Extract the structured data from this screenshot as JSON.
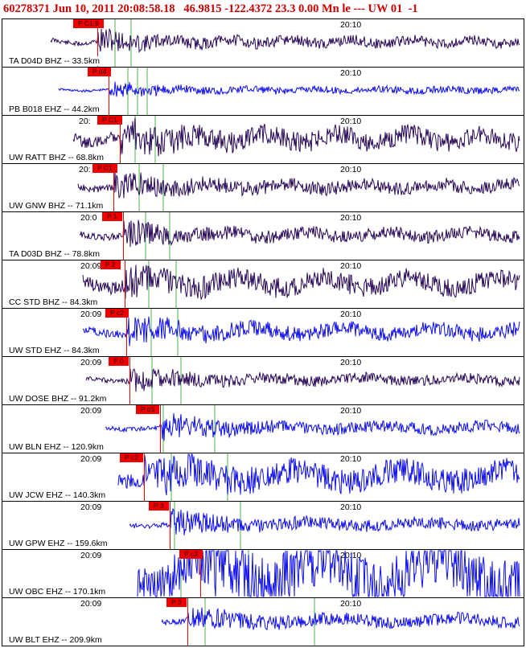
{
  "header": {
    "text": "60278371 Jun 10, 2011 20:08:58.18   46.9815 -122.4372 23.3 0.00 Mn le --- UW 01  -1"
  },
  "colors": {
    "header": "#cc0000",
    "pick": "#ee0000",
    "wave_dark": "#2a0a5a",
    "wave_blue": "#1010ee",
    "marker_green": "#88cc88",
    "border": "#000000"
  },
  "panels": [
    {
      "station": "TA D04D BHZ -- 33.5km",
      "time_left": "",
      "time_right": "20:10",
      "pick": "P C1.9",
      "color": "wave_dark"
    },
    {
      "station": "PB B018 EHZ -- 44.2km",
      "time_left": "",
      "time_right": "20:10",
      "pick": "P d4",
      "color": "wave_blue"
    },
    {
      "station": "UW RATT BHZ -- 68.8km",
      "time_left": "20:",
      "time_right": "20:10",
      "pick": "P C1",
      "color": "wave_dark"
    },
    {
      "station": "UW GNW BHZ -- 71.1km",
      "time_left": "20:",
      "time_right": "20:10",
      "pick": "P C1",
      "color": "wave_dark"
    },
    {
      "station": "TA D03D BHZ -- 78.8km",
      "time_left": "20:0",
      "time_right": "20:10",
      "pick": "P 1",
      "color": "wave_dark"
    },
    {
      "station": "CC STD BHZ -- 84.3km",
      "time_left": "20:09",
      "time_right": "20:10",
      "pick": "P 2",
      "color": "wave_dark"
    },
    {
      "station": "UW STD EHZ -- 84.3km",
      "time_left": "20:09",
      "time_right": "20:10",
      "pick": "P c2",
      "color": "wave_blue"
    },
    {
      "station": "UW DOSE BHZ -- 91.2km",
      "time_left": "20:09",
      "time_right": "20:10",
      "pick": "P 0",
      "color": "wave_dark"
    },
    {
      "station": "UW BLN EHZ -- 120.9km",
      "time_left": "20:09",
      "time_right": "20:10",
      "pick": "P d1",
      "color": "wave_blue"
    },
    {
      "station": "UW JCW EHZ -- 140.3km",
      "time_left": "20:09",
      "time_right": "20:10",
      "pick": "P c2",
      "color": "wave_blue"
    },
    {
      "station": "UW GPW EHZ -- 159.6km",
      "time_left": "20:09",
      "time_right": "20:10",
      "pick": "P 3",
      "color": "wave_blue"
    },
    {
      "station": "UW OBC EHZ -- 170.1km",
      "time_left": "20:09",
      "time_right": "20:10",
      "pick": "P c3",
      "color": "wave_blue"
    },
    {
      "station": "UW BLT EHZ -- 209.9km",
      "time_left": "20:09",
      "time_right": "20:10",
      "pick": "P 3",
      "color": "wave_blue"
    }
  ]
}
